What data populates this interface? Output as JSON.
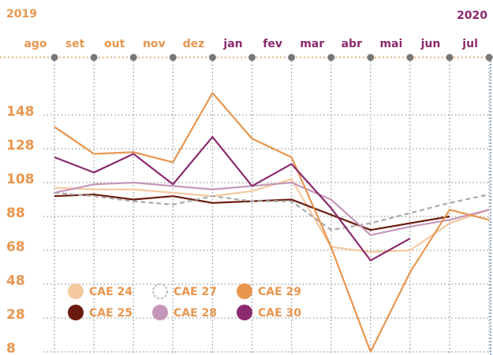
{
  "chart_data": {
    "type": "line",
    "year_labels": [
      "2019",
      "2020"
    ],
    "year_colors": [
      "#e8964f",
      "#8b2a6e"
    ],
    "categories": [
      "ago",
      "set",
      "out",
      "nov",
      "dez",
      "jan",
      "fev",
      "mar",
      "abr",
      "mai",
      "jun",
      "jul"
    ],
    "category_colors": [
      "#e8964f",
      "#e8964f",
      "#e8964f",
      "#e8964f",
      "#e8964f",
      "#8b2a6e",
      "#8b2a6e",
      "#8b2a6e",
      "#8b2a6e",
      "#8b2a6e",
      "#8b2a6e",
      "#8b2a6e"
    ],
    "ylim": [
      8,
      188
    ],
    "yticks": [
      8,
      28,
      48,
      68,
      88,
      108,
      128,
      148
    ],
    "grid": true,
    "legend": "lower left",
    "series": [
      {
        "name": "CAE 24",
        "color": "#f5c9a0",
        "dash": false,
        "values": [
          105,
          104,
          104,
          102,
          100,
          103,
          110,
          70,
          67,
          68,
          84,
          92
        ]
      },
      {
        "name": "CAE 25",
        "color": "#6b1a0e",
        "dash": false,
        "values": [
          100,
          101,
          98,
          100,
          96,
          97,
          98,
          89,
          80,
          84,
          88,
          null
        ]
      },
      {
        "name": "CAE 27",
        "color": "#aaaaaa",
        "dash": true,
        "values": [
          102,
          100,
          97,
          95,
          100,
          97,
          97,
          80,
          84,
          90,
          96,
          101
        ]
      },
      {
        "name": "CAE 28",
        "color": "#c497b8",
        "dash": false,
        "values": [
          102,
          107,
          108,
          106,
          104,
          106,
          108,
          98,
          77,
          82,
          86,
          92
        ]
      },
      {
        "name": "CAE 29",
        "color": "#e8964f",
        "dash": false,
        "values": [
          141,
          125,
          126,
          120,
          161,
          134,
          123,
          70,
          8,
          55,
          92,
          86
        ]
      },
      {
        "name": "CAE 30",
        "color": "#8b2a6e",
        "dash": false,
        "values": [
          123,
          114,
          125,
          107,
          135,
          106,
          119,
          93,
          62,
          75,
          null,
          null
        ]
      }
    ]
  }
}
